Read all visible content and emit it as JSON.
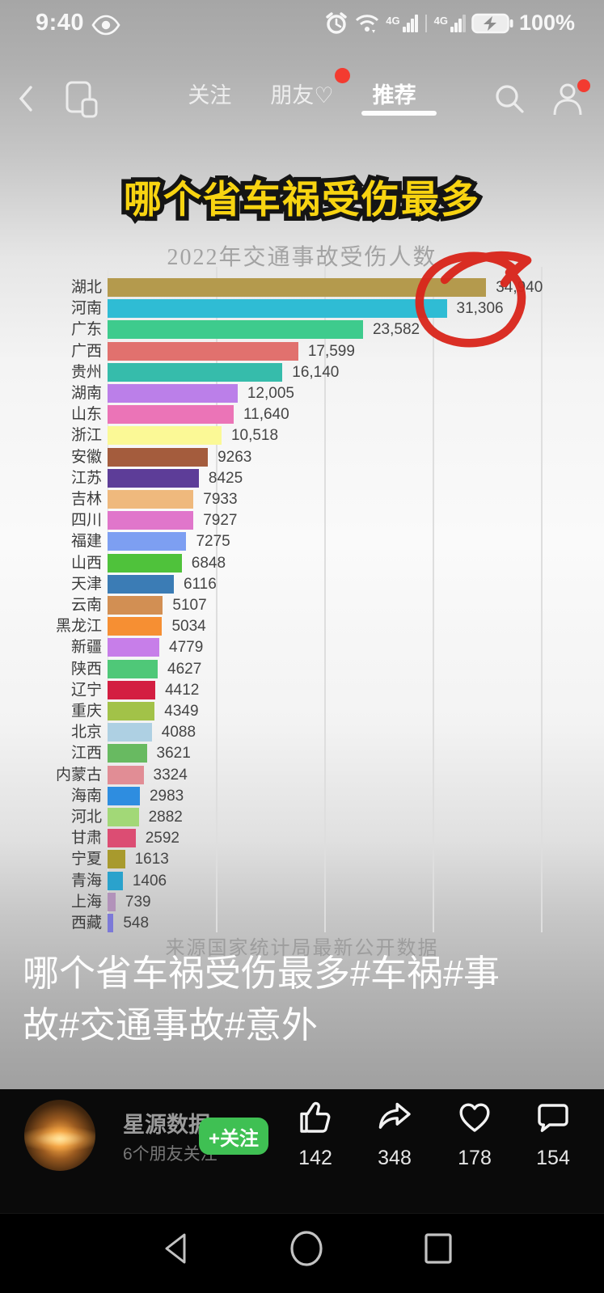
{
  "status_bar": {
    "time": "9:40",
    "battery_level": "100%"
  },
  "nav": {
    "tabs": [
      {
        "label": "关注",
        "badge": false
      },
      {
        "label": "朋友♡",
        "badge": true
      },
      {
        "label": "推荐",
        "badge": false
      }
    ],
    "active_tab": "推荐"
  },
  "content": {
    "headline": "哪个省车祸受伤最多",
    "source": "来源国家统计局最新公开数据",
    "caption_line1": "哪个省车祸受伤最多#车祸#事",
    "caption_line2": "故#交通事故#意外"
  },
  "chart_data": {
    "type": "bar",
    "orientation": "horizontal",
    "title": "2022年交通事故受伤人数",
    "categories": [
      "湖北",
      "河南",
      "广东",
      "广西",
      "贵州",
      "湖南",
      "山东",
      "浙江",
      "安徽",
      "江苏",
      "吉林",
      "四川",
      "福建",
      "山西",
      "天津",
      "云南",
      "黑龙江",
      "新疆",
      "陕西",
      "辽宁",
      "重庆",
      "北京",
      "江西",
      "内蒙古",
      "海南",
      "河北",
      "甘肃",
      "宁夏",
      "青海",
      "上海",
      "西藏"
    ],
    "values": [
      34940,
      31306,
      23582,
      17599,
      16140,
      12005,
      11640,
      10518,
      9263,
      8425,
      7933,
      7927,
      7275,
      6848,
      6116,
      5107,
      5034,
      4779,
      4627,
      4412,
      4349,
      4088,
      3621,
      3324,
      2983,
      2882,
      2592,
      1613,
      1406,
      739,
      548
    ],
    "value_labels": [
      "34,940",
      "31,306",
      "23,582",
      "17,599",
      "16,140",
      "12,005",
      "11,640",
      "10,518",
      "9263",
      "8425",
      "7933",
      "7927",
      "7275",
      "6848",
      "6116",
      "5107",
      "5034",
      "4779",
      "4627",
      "4412",
      "4349",
      "4088",
      "3621",
      "3324",
      "2983",
      "2882",
      "2592",
      "1613",
      "1406",
      "739",
      "548"
    ],
    "bar_colors": [
      "#b49a4d",
      "#2fbcd4",
      "#3ecb8d",
      "#e1716e",
      "#36bcab",
      "#bb7fe9",
      "#eb74b7",
      "#fbf996",
      "#a45c3d",
      "#5d3d98",
      "#efb97d",
      "#e076cb",
      "#7d9ff2",
      "#4fc23b",
      "#3b7cb5",
      "#d28f53",
      "#f68f33",
      "#c77ee9",
      "#4fc878",
      "#d31e41",
      "#a2c248",
      "#aed0e3",
      "#68ba61",
      "#e18d95",
      "#2e8de0",
      "#a2d877",
      "#dc4d73",
      "#a89a2d",
      "#2aa2cc",
      "#b292ba",
      "#7c79d8"
    ],
    "xlim": [
      0,
      41500
    ],
    "gridline_values": [
      10000,
      20000,
      30000,
      40000
    ],
    "grid": "vertical-light-gray",
    "legend": "none",
    "annotation": {
      "type": "hand-drawn-red-circle",
      "highlights": [
        "湖北 34,940",
        "河南 31,306"
      ]
    }
  },
  "publisher": {
    "username": "星源数据",
    "friends_note": "6个朋友关注",
    "follow_button": "+关注"
  },
  "engagement": {
    "likes": "142",
    "shares": "348",
    "favorites": "178",
    "comments": "154"
  },
  "colors": {
    "headline_yellow": "#f8d411",
    "follow_green": "#3fc053",
    "badge_red": "#f33b30",
    "annotation_red": "#d9261c"
  }
}
